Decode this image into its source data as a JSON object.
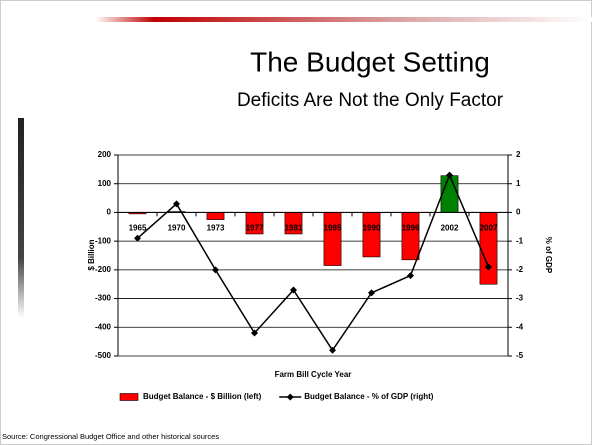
{
  "chart_data": {
    "type": "bar",
    "title": "The Budget Setting",
    "subtitle": "Deficits Are Not the Only Factor",
    "x_label": "Farm Bill Cycle Year",
    "y_label": "$ Billion",
    "y2_label": "% of GDP",
    "categories": [
      "1965",
      "1970",
      "1973",
      "1977",
      "1981",
      "1985",
      "1990",
      "1996",
      "2002",
      "2007"
    ],
    "series": [
      {
        "name": "Budget Balance - $ Billion (left)",
        "type": "bar",
        "color": "#ff0000",
        "colors": [
          "#ff0000",
          "#ff0000",
          "#ff0000",
          "#ff0000",
          "#ff0000",
          "#ff0000",
          "#ff0000",
          "#ff0000",
          "#008000",
          "#ff0000"
        ],
        "values": [
          -5,
          3,
          -25,
          -75,
          -75,
          -185,
          -155,
          -165,
          128,
          -250
        ]
      },
      {
        "name": "Budget Balance - % of GDP (right)",
        "type": "line",
        "axis": "y2",
        "color": "#000000",
        "values": [
          -0.9,
          0.3,
          -2.0,
          -4.2,
          -2.7,
          -4.8,
          -2.8,
          -2.2,
          1.3,
          -1.9
        ]
      }
    ],
    "ylim": [
      -500,
      200
    ],
    "yticks": [
      -500,
      -400,
      -300,
      -200,
      -100,
      0,
      100,
      200
    ],
    "y2lim": [
      -5,
      2
    ],
    "y2ticks": [
      -5,
      -4,
      -3,
      -2,
      -1,
      0,
      1,
      2
    ],
    "grid": true,
    "legend": "bottom"
  },
  "source": "Source: Congressional Budget Office and other historical sources"
}
